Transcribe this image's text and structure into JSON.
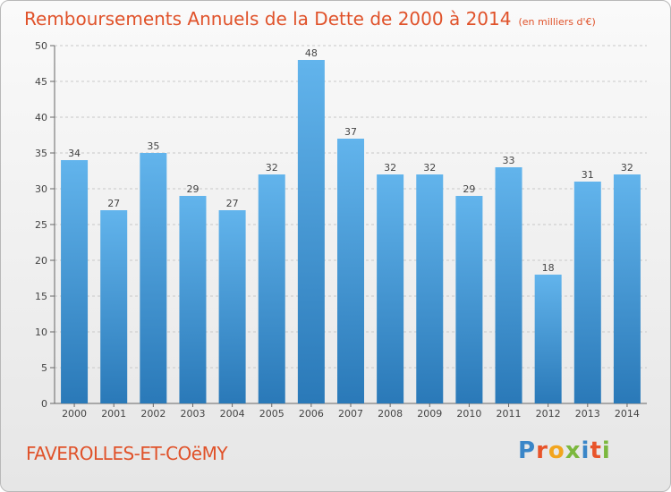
{
  "header": {
    "title": "Remboursements Annuels de la Dette de 2000 à 2014",
    "subtitle": "(en milliers d'€)"
  },
  "footer": {
    "commune": "FAVEROLLES-ET-COëMY",
    "logo_text": "Proxiti"
  },
  "colors": {
    "title": "#e0522a",
    "bar_top": "#62b4ec",
    "bar_bottom": "#2a79b8",
    "logo": [
      "#3a86c8",
      "#e8542a",
      "#f2a51e",
      "#7cb83e",
      "#3a86c8",
      "#e8542a",
      "#7cb83e"
    ]
  },
  "chart_data": {
    "type": "bar",
    "categories": [
      "2000",
      "2001",
      "2002",
      "2003",
      "2004",
      "2005",
      "2006",
      "2007",
      "2008",
      "2009",
      "2010",
      "2011",
      "2012",
      "2013",
      "2014"
    ],
    "values": [
      34,
      27,
      35,
      29,
      27,
      32,
      48,
      37,
      32,
      32,
      29,
      33,
      18,
      31,
      32
    ],
    "ylim": [
      0,
      50
    ],
    "yticks": [
      0,
      5,
      10,
      15,
      20,
      25,
      30,
      35,
      40,
      45,
      50
    ],
    "grid": true,
    "data_labels": true
  }
}
